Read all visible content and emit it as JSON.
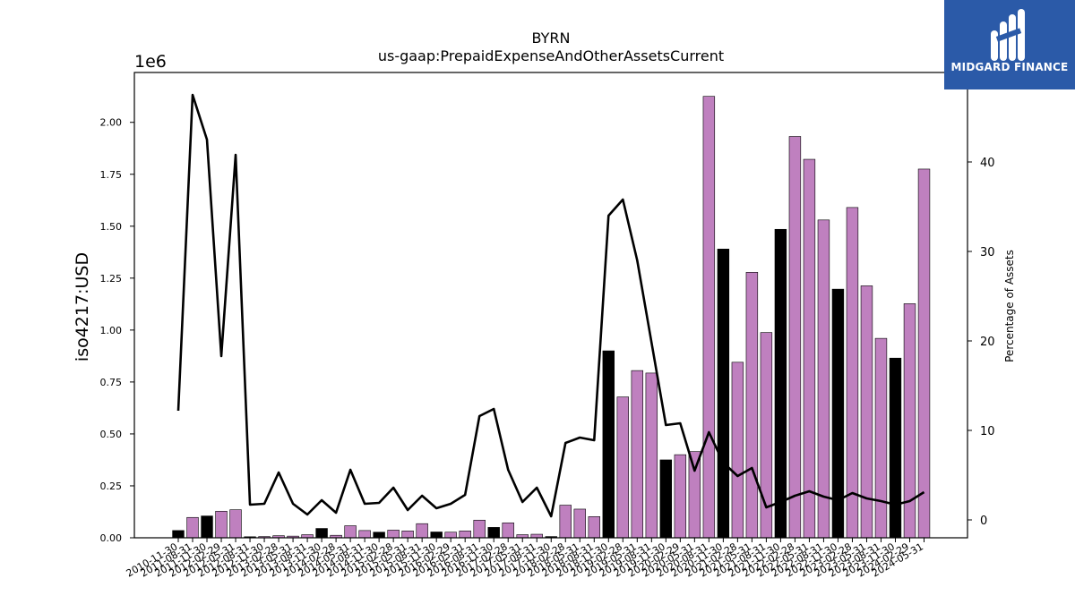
{
  "chart_data": {
    "type": "bar",
    "title": "BYRN",
    "subtitle": "us-gaap:PrepaidExpenseAndOtherAssetsCurrent",
    "ylabel": "iso4217:USD",
    "y_offset_label": "1e6",
    "ylim": [
      0,
      2240000
    ],
    "yticks": [
      0,
      250000,
      500000,
      750000,
      1000000,
      1250000,
      1500000,
      1750000,
      2000000
    ],
    "ytick_labels": [
      "0.00",
      "0.25",
      "0.50",
      "0.75",
      "1.00",
      "1.25",
      "1.50",
      "1.75",
      "2.00"
    ],
    "y2label": "Percentage of Assets",
    "y2lim": [
      -2,
      50
    ],
    "y2ticks": [
      0,
      10,
      20,
      30,
      40
    ],
    "y2tick_labels": [
      "0",
      "10",
      "20",
      "30",
      "40"
    ],
    "grid": false,
    "categories": [
      "2010-11-30",
      "2011-08-31",
      "2011-11-30",
      "2012-02-29",
      "2012-05-31",
      "2012-08-31",
      "2012-11-30",
      "2013-02-28",
      "2013-05-31",
      "2013-08-31",
      "2013-11-30",
      "2014-02-28",
      "2014-05-31",
      "2014-08-31",
      "2014-11-30",
      "2015-02-28",
      "2015-05-31",
      "2015-08-31",
      "2015-11-30",
      "2016-02-29",
      "2016-05-31",
      "2016-08-31",
      "2016-11-30",
      "2017-02-28",
      "2017-05-31",
      "2017-08-31",
      "2017-11-30",
      "2018-02-28",
      "2018-05-31",
      "2018-08-31",
      "2018-11-30",
      "2019-02-28",
      "2019-05-31",
      "2019-08-31",
      "2019-11-30",
      "2020-02-29",
      "2020-05-31",
      "2020-08-31",
      "2020-11-30",
      "2021-02-28",
      "2021-05-31",
      "2021-08-31",
      "2021-11-30",
      "2022-02-28",
      "2022-05-31",
      "2022-08-31",
      "2022-11-30",
      "2023-02-28",
      "2023-05-31",
      "2023-08-31",
      "2023-11-30",
      "2024-02-29",
      "2024-05-31"
    ],
    "series": [
      {
        "kind": "bar",
        "values": [
          35000,
          98000,
          105000,
          128000,
          135000,
          5000,
          6000,
          10000,
          8000,
          15000,
          45000,
          12000,
          58000,
          35000,
          27000,
          37000,
          33000,
          68000,
          28000,
          27000,
          33000,
          85000,
          50000,
          72000,
          15000,
          17000,
          6000,
          157000,
          138000,
          102000,
          900000,
          678000,
          805000,
          793000,
          375000,
          400000,
          415000,
          2125000,
          1390000,
          845000,
          1278000,
          988000,
          1485000,
          1932000,
          1822000,
          1530000,
          1197000,
          1590000,
          1213000,
          960000,
          865000,
          1127000,
          1775000
        ],
        "colors": [
          "#000000",
          "#bf80bf",
          "#000000",
          "#bf80bf",
          "#bf80bf",
          "#000000",
          "#bf80bf",
          "#bf80bf",
          "#bf80bf",
          "#bf80bf",
          "#000000",
          "#bf80bf",
          "#bf80bf",
          "#bf80bf",
          "#000000",
          "#bf80bf",
          "#bf80bf",
          "#bf80bf",
          "#000000",
          "#bf80bf",
          "#bf80bf",
          "#bf80bf",
          "#000000",
          "#bf80bf",
          "#bf80bf",
          "#bf80bf",
          "#000000",
          "#bf80bf",
          "#bf80bf",
          "#bf80bf",
          "#000000",
          "#bf80bf",
          "#bf80bf",
          "#bf80bf",
          "#000000",
          "#bf80bf",
          "#bf80bf",
          "#bf80bf",
          "#000000",
          "#bf80bf",
          "#bf80bf",
          "#bf80bf",
          "#000000",
          "#bf80bf",
          "#bf80bf",
          "#bf80bf",
          "#000000",
          "#bf80bf",
          "#bf80bf",
          "#bf80bf",
          "#000000",
          "#bf80bf",
          "#bf80bf"
        ]
      },
      {
        "kind": "line",
        "axis": "right",
        "color": "#000000",
        "values": [
          12.2,
          47.5,
          42.5,
          18.3,
          40.8,
          1.7,
          1.8,
          5.3,
          1.8,
          0.6,
          2.2,
          0.8,
          5.6,
          1.8,
          1.9,
          3.6,
          1.1,
          2.7,
          1.3,
          1.8,
          2.8,
          11.6,
          12.4,
          5.6,
          2.0,
          3.6,
          0.4,
          8.6,
          9.2,
          8.9,
          34.0,
          35.8,
          29.0,
          19.8,
          10.6,
          10.8,
          5.5,
          9.8,
          6.4,
          4.9,
          5.8,
          1.4,
          2.0,
          2.7,
          3.2,
          2.6,
          2.2,
          3.0,
          2.4,
          2.1,
          1.7,
          2.1,
          3.1
        ]
      }
    ]
  },
  "logo": {
    "brand": "MIDGARD FINANCE",
    "bg_color": "#2b5aa8"
  }
}
